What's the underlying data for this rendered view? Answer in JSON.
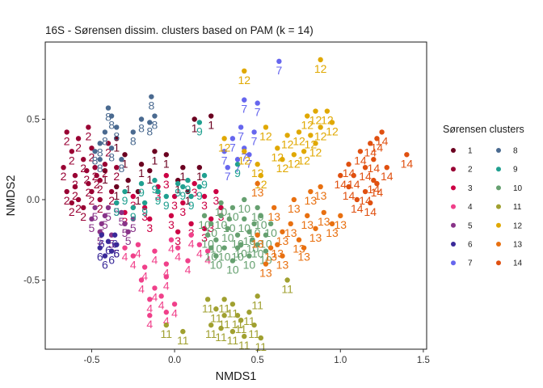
{
  "chart_data": {
    "type": "scatter",
    "title": "16S - Sørensen dissim. clusters based on PAM (k = 14)",
    "xlabel": "NMDS1",
    "ylabel": "NMDS2",
    "xlim": [
      -0.78,
      1.52
    ],
    "ylim": [
      -0.93,
      0.98
    ],
    "xticks": [
      -0.5,
      0.0,
      0.5,
      1.0,
      1.5
    ],
    "xtick_labels": [
      "-0.5",
      "0.0",
      "0.5",
      "1.0",
      "1.5"
    ],
    "yticks": [
      -0.5,
      0.0,
      0.5
    ],
    "ytick_labels": [
      "-0.5",
      "0.0",
      "0.5"
    ],
    "grid": false,
    "legend": {
      "title": "Sørensen clusters",
      "placement": "right"
    },
    "series": [
      {
        "name": "1",
        "color": "#6b0020",
        "points": [
          [
            -0.35,
            0.38
          ],
          [
            -0.3,
            0.28
          ],
          [
            -0.2,
            0.22
          ],
          [
            -0.12,
            0.3
          ],
          [
            -0.05,
            0.28
          ],
          [
            0.05,
            0.2
          ],
          [
            0.12,
            0.5
          ],
          [
            0.22,
            0.52
          ],
          [
            -0.42,
            0.18
          ],
          [
            -0.28,
            0.12
          ],
          [
            -0.15,
            0.18
          ],
          [
            0.02,
            0.12
          ],
          [
            0.15,
            0.2
          ],
          [
            0.08,
            0.05
          ],
          [
            -0.22,
            0.05
          ],
          [
            -0.35,
            0.08
          ]
        ]
      },
      {
        "name": "2",
        "color": "#990033",
        "points": [
          [
            -0.65,
            0.42
          ],
          [
            -0.58,
            0.38
          ],
          [
            -0.52,
            0.45
          ],
          [
            -0.62,
            0.3
          ],
          [
            -0.55,
            0.25
          ],
          [
            -0.48,
            0.2
          ],
          [
            -0.6,
            0.15
          ],
          [
            -0.52,
            0.1
          ],
          [
            -0.45,
            0.12
          ],
          [
            -0.65,
            0.05
          ],
          [
            -0.58,
            0.0
          ],
          [
            -0.5,
            0.05
          ],
          [
            -0.42,
            0.22
          ],
          [
            -0.4,
            0.35
          ],
          [
            -0.67,
            0.2
          ],
          [
            -0.45,
            0.0
          ],
          [
            -0.55,
            -0.05
          ],
          [
            -0.62,
            -0.02
          ],
          [
            -0.38,
            0.05
          ],
          [
            -0.35,
            0.2
          ],
          [
            -0.5,
            0.32
          ],
          [
            -0.6,
            0.08
          ],
          [
            -0.47,
            0.15
          ],
          [
            -0.53,
            0.18
          ]
        ]
      },
      {
        "name": "3",
        "color": "#cc0044",
        "points": [
          [
            -0.25,
            0.02
          ],
          [
            -0.18,
            -0.05
          ],
          [
            -0.1,
            0.08
          ],
          [
            -0.02,
            -0.1
          ],
          [
            0.05,
            -0.02
          ],
          [
            0.12,
            0.1
          ],
          [
            0.18,
            0.02
          ],
          [
            0.22,
            -0.12
          ],
          [
            -0.05,
            0.15
          ],
          [
            0.0,
            0.02
          ],
          [
            -0.15,
            -0.12
          ],
          [
            0.1,
            -0.15
          ],
          [
            0.25,
            0.05
          ],
          [
            -0.3,
            -0.08
          ],
          [
            0.02,
            -0.2
          ],
          [
            0.18,
            -0.18
          ],
          [
            0.28,
            -0.05
          ]
        ]
      },
      {
        "name": "4",
        "color": "#f0408a",
        "points": [
          [
            -0.25,
            -0.35
          ],
          [
            -0.18,
            -0.42
          ],
          [
            -0.12,
            -0.32
          ],
          [
            -0.05,
            -0.4
          ],
          [
            0.02,
            -0.3
          ],
          [
            0.08,
            -0.38
          ],
          [
            0.15,
            -0.28
          ],
          [
            -0.2,
            -0.5
          ],
          [
            -0.12,
            -0.55
          ],
          [
            -0.05,
            -0.48
          ],
          [
            -0.22,
            -0.28
          ],
          [
            0.1,
            -0.22
          ],
          [
            -0.08,
            -0.6
          ],
          [
            -0.15,
            -0.62
          ],
          [
            -0.15,
            -0.72
          ],
          [
            -0.05,
            -0.7
          ],
          [
            0.0,
            -0.65
          ],
          [
            0.2,
            -0.32
          ],
          [
            -0.3,
            -0.3
          ],
          [
            -0.02,
            -0.25
          ]
        ]
      },
      {
        "name": "5",
        "color": "#883388",
        "points": [
          [
            -0.48,
            -0.05
          ],
          [
            -0.42,
            -0.1
          ],
          [
            -0.35,
            -0.02
          ],
          [
            -0.3,
            -0.15
          ],
          [
            -0.45,
            -0.2
          ],
          [
            -0.38,
            -0.22
          ],
          [
            -0.25,
            -0.12
          ],
          [
            -0.5,
            -0.12
          ],
          [
            -0.4,
            -0.05
          ],
          [
            -0.32,
            -0.08
          ],
          [
            -0.28,
            -0.2
          ],
          [
            -0.44,
            -0.15
          ],
          [
            -0.35,
            -0.28
          ]
        ]
      },
      {
        "name": "6",
        "color": "#3a2a99",
        "points": [
          [
            -0.45,
            -0.3
          ],
          [
            -0.4,
            -0.26
          ],
          [
            -0.38,
            -0.32
          ],
          [
            -0.35,
            -0.28
          ],
          [
            -0.42,
            -0.35
          ],
          [
            -0.36,
            -0.22
          ],
          [
            -0.44,
            -0.22
          ]
        ]
      },
      {
        "name": "7",
        "color": "#6666ee",
        "points": [
          [
            0.32,
            0.2
          ],
          [
            0.38,
            0.25
          ],
          [
            0.42,
            0.32
          ],
          [
            0.45,
            0.28
          ],
          [
            0.35,
            0.38
          ],
          [
            0.4,
            0.45
          ],
          [
            0.48,
            0.42
          ],
          [
            0.42,
            0.62
          ],
          [
            0.5,
            0.6
          ],
          [
            0.63,
            0.86
          ],
          [
            0.3,
            0.3
          ]
        ]
      },
      {
        "name": "8",
        "color": "#4a6a90",
        "points": [
          [
            -0.4,
            0.57
          ],
          [
            -0.38,
            0.52
          ],
          [
            -0.35,
            0.45
          ],
          [
            -0.42,
            0.42
          ],
          [
            -0.45,
            0.35
          ],
          [
            -0.38,
            0.32
          ],
          [
            -0.32,
            0.25
          ],
          [
            -0.15,
            0.48
          ],
          [
            -0.12,
            0.52
          ],
          [
            -0.2,
            0.5
          ],
          [
            -0.25,
            0.42
          ],
          [
            -0.45,
            0.25
          ],
          [
            -0.48,
            0.3
          ],
          [
            -0.14,
            0.64
          ]
        ]
      },
      {
        "name": "9",
        "color": "#20a090",
        "points": [
          [
            -0.3,
            0.05
          ],
          [
            -0.2,
            0.1
          ],
          [
            -0.1,
            0.05
          ],
          [
            -0.18,
            -0.02
          ],
          [
            -0.05,
            0.02
          ],
          [
            0.02,
            0.1
          ],
          [
            0.1,
            0.02
          ],
          [
            0.18,
            0.15
          ],
          [
            -0.25,
            -0.05
          ],
          [
            -0.12,
            0.12
          ],
          [
            0.05,
            0.08
          ],
          [
            0.15,
            0.08
          ],
          [
            0.38,
            0.22
          ],
          [
            0.15,
            0.48
          ],
          [
            -0.35,
            -0.02
          ],
          [
            0.08,
            0.12
          ]
        ]
      },
      {
        "name": "10",
        "color": "#66a070",
        "points": [
          [
            0.18,
            -0.1
          ],
          [
            0.22,
            -0.15
          ],
          [
            0.25,
            -0.25
          ],
          [
            0.28,
            -0.1
          ],
          [
            0.32,
            -0.18
          ],
          [
            0.35,
            -0.05
          ],
          [
            0.38,
            -0.22
          ],
          [
            0.42,
            -0.12
          ],
          [
            0.45,
            -0.2
          ],
          [
            0.48,
            -0.15
          ],
          [
            0.52,
            -0.1
          ],
          [
            0.55,
            -0.22
          ],
          [
            0.3,
            -0.3
          ],
          [
            0.4,
            -0.28
          ],
          [
            0.5,
            -0.28
          ],
          [
            0.25,
            -0.35
          ],
          [
            0.35,
            -0.38
          ],
          [
            0.45,
            -0.35
          ],
          [
            0.58,
            -0.15
          ],
          [
            0.2,
            -0.22
          ],
          [
            0.28,
            -0.02
          ],
          [
            0.42,
            0.0
          ],
          [
            0.5,
            -0.05
          ],
          [
            0.38,
            -0.3
          ],
          [
            0.22,
            -0.3
          ],
          [
            0.33,
            -0.12
          ],
          [
            0.47,
            -0.25
          ],
          [
            0.55,
            -0.32
          ]
        ]
      },
      {
        "name": "11",
        "color": "#a0a030",
        "points": [
          [
            0.2,
            -0.62
          ],
          [
            0.25,
            -0.68
          ],
          [
            0.3,
            -0.72
          ],
          [
            0.35,
            -0.65
          ],
          [
            0.4,
            -0.75
          ],
          [
            0.45,
            -0.7
          ],
          [
            0.5,
            -0.6
          ],
          [
            0.28,
            -0.8
          ],
          [
            0.35,
            -0.82
          ],
          [
            0.42,
            -0.85
          ],
          [
            0.22,
            -0.78
          ],
          [
            0.38,
            -0.72
          ],
          [
            0.48,
            -0.78
          ],
          [
            0.52,
            -0.86
          ],
          [
            0.68,
            -0.5
          ],
          [
            -0.05,
            -0.78
          ],
          [
            0.05,
            -0.82
          ],
          [
            0.3,
            -0.62
          ]
        ]
      },
      {
        "name": "12",
        "color": "#e0a800",
        "points": [
          [
            0.42,
            0.3
          ],
          [
            0.5,
            0.22
          ],
          [
            0.62,
            0.32
          ],
          [
            0.68,
            0.4
          ],
          [
            0.72,
            0.28
          ],
          [
            0.75,
            0.42
          ],
          [
            0.8,
            0.52
          ],
          [
            0.82,
            0.4
          ],
          [
            0.85,
            0.55
          ],
          [
            0.88,
            0.45
          ],
          [
            0.92,
            0.55
          ],
          [
            0.95,
            0.48
          ],
          [
            0.85,
            0.35
          ],
          [
            0.78,
            0.3
          ],
          [
            0.65,
            0.25
          ],
          [
            0.55,
            0.45
          ],
          [
            0.52,
            0.15
          ],
          [
            0.88,
            0.87
          ],
          [
            0.42,
            0.8
          ],
          [
            0.3,
            0.38
          ]
        ]
      },
      {
        "name": "13",
        "color": "#e87010",
        "points": [
          [
            0.5,
            0.1
          ],
          [
            0.6,
            -0.05
          ],
          [
            0.65,
            -0.2
          ],
          [
            0.7,
            -0.15
          ],
          [
            0.75,
            -0.25
          ],
          [
            0.8,
            -0.1
          ],
          [
            0.85,
            -0.18
          ],
          [
            0.9,
            -0.08
          ],
          [
            0.95,
            -0.15
          ],
          [
            0.72,
            0.0
          ],
          [
            0.82,
            0.05
          ],
          [
            0.58,
            -0.3
          ],
          [
            0.65,
            -0.35
          ],
          [
            0.55,
            -0.4
          ],
          [
            0.62,
            -0.28
          ],
          [
            0.78,
            -0.3
          ],
          [
            0.88,
            0.08
          ],
          [
            1.0,
            -0.1
          ],
          [
            0.5,
            -0.22
          ]
        ]
      },
      {
        "name": "14",
        "color": "#e05010",
        "points": [
          [
            1.0,
            0.15
          ],
          [
            1.05,
            0.22
          ],
          [
            1.08,
            0.15
          ],
          [
            1.12,
            0.3
          ],
          [
            1.15,
            0.2
          ],
          [
            1.18,
            0.35
          ],
          [
            1.2,
            0.25
          ],
          [
            1.22,
            0.38
          ],
          [
            1.25,
            0.42
          ],
          [
            1.15,
            0.05
          ],
          [
            1.18,
            -0.02
          ],
          [
            1.22,
            0.1
          ],
          [
            1.05,
            0.08
          ],
          [
            1.4,
            0.28
          ],
          [
            1.1,
            0.0
          ],
          [
            1.2,
            0.12
          ],
          [
            1.28,
            0.2
          ]
        ]
      }
    ]
  }
}
